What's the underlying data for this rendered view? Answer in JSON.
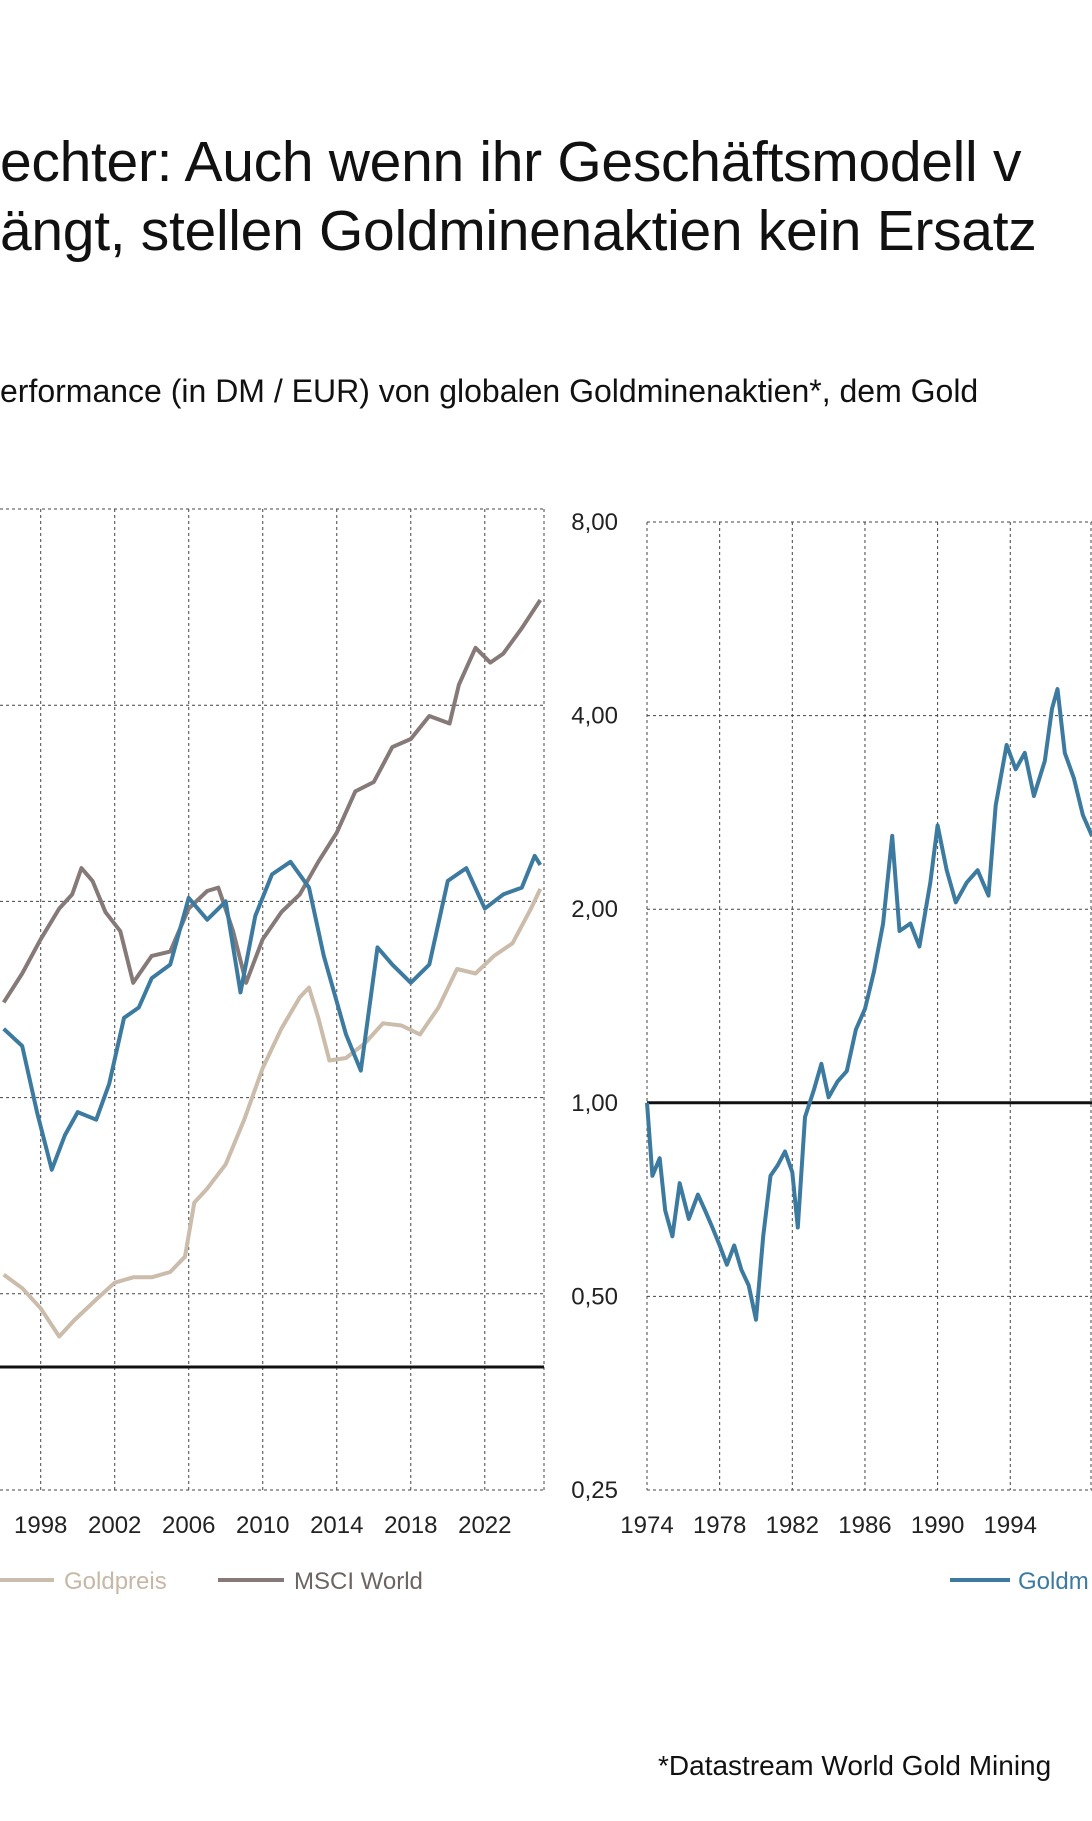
{
  "title_line1": "echter: Auch wenn ihr Geschäftsmodell v",
  "title_line2": "ängt, stellen Goldminenaktien kein Ersatz",
  "subtitle": "erformance (in DM / EUR) von globalen Goldminenaktien*, dem Gold",
  "footnote": "*Datastream World Gold Mining",
  "colors": {
    "gold_miners": "#3d7aa0",
    "gold_price": "#cbbcab",
    "msci_world": "#857a78"
  },
  "chart_data": [
    {
      "type": "line",
      "y_scale": "log",
      "x_tick_labels": [
        "1998",
        "2002",
        "2006",
        "2010",
        "2014",
        "2018",
        "2022"
      ],
      "x_range": [
        1995.8,
        2025.2
      ],
      "reference_line": "baseline",
      "grid": true,
      "legend": {
        "position": "bottom",
        "entries": [
          "Goldpreis",
          "MSCI World"
        ]
      },
      "series": [
        {
          "name": "Goldpreis",
          "color": "#cbbcab",
          "points": [
            [
              1996.0,
              1.07
            ],
            [
              1997.0,
              1.02
            ],
            [
              1998.0,
              0.95
            ],
            [
              1999.0,
              0.86
            ],
            [
              1999.8,
              0.91
            ],
            [
              2001.0,
              0.98
            ],
            [
              2002.0,
              1.04
            ],
            [
              2003.0,
              1.06
            ],
            [
              2004.0,
              1.06
            ],
            [
              2005.0,
              1.08
            ],
            [
              2005.8,
              1.14
            ],
            [
              2006.3,
              1.38
            ],
            [
              2007.0,
              1.45
            ],
            [
              2008.0,
              1.58
            ],
            [
              2009.0,
              1.85
            ],
            [
              2010.0,
              2.22
            ],
            [
              2011.0,
              2.55
            ],
            [
              2012.0,
              2.85
            ],
            [
              2012.5,
              2.95
            ],
            [
              2013.0,
              2.65
            ],
            [
              2013.6,
              2.28
            ],
            [
              2014.5,
              2.3
            ],
            [
              2015.5,
              2.42
            ],
            [
              2016.5,
              2.6
            ],
            [
              2017.5,
              2.58
            ],
            [
              2018.5,
              2.5
            ],
            [
              2019.5,
              2.75
            ],
            [
              2020.5,
              3.15
            ],
            [
              2021.5,
              3.1
            ],
            [
              2022.5,
              3.3
            ],
            [
              2023.5,
              3.45
            ],
            [
              2024.5,
              3.9
            ],
            [
              2025.0,
              4.18
            ]
          ]
        },
        {
          "name": "MSCI World",
          "color": "#857a78",
          "points": [
            [
              1996.0,
              2.8
            ],
            [
              1997.0,
              3.1
            ],
            [
              1998.0,
              3.5
            ],
            [
              1999.0,
              3.9
            ],
            [
              1999.7,
              4.1
            ],
            [
              2000.2,
              4.5
            ],
            [
              2000.8,
              4.3
            ],
            [
              2001.5,
              3.85
            ],
            [
              2002.3,
              3.6
            ],
            [
              2003.0,
              3.0
            ],
            [
              2004.0,
              3.3
            ],
            [
              2005.0,
              3.35
            ],
            [
              2006.0,
              3.9
            ],
            [
              2007.0,
              4.15
            ],
            [
              2007.6,
              4.2
            ],
            [
              2008.4,
              3.6
            ],
            [
              2009.1,
              3.0
            ],
            [
              2010.0,
              3.5
            ],
            [
              2011.0,
              3.85
            ],
            [
              2012.0,
              4.1
            ],
            [
              2013.0,
              4.6
            ],
            [
              2014.0,
              5.1
            ],
            [
              2015.0,
              5.9
            ],
            [
              2016.0,
              6.1
            ],
            [
              2017.0,
              6.9
            ],
            [
              2018.0,
              7.1
            ],
            [
              2019.0,
              7.7
            ],
            [
              2020.1,
              7.5
            ],
            [
              2020.6,
              8.6
            ],
            [
              2021.5,
              9.8
            ],
            [
              2022.3,
              9.3
            ],
            [
              2023.0,
              9.6
            ],
            [
              2024.0,
              10.5
            ],
            [
              2025.0,
              11.6
            ]
          ]
        },
        {
          "name": "Goldminenaktien",
          "color": "#3d7aa0",
          "points": [
            [
              1996.0,
              2.55
            ],
            [
              1997.0,
              2.4
            ],
            [
              1997.8,
              1.9
            ],
            [
              1998.6,
              1.55
            ],
            [
              1999.3,
              1.75
            ],
            [
              2000.0,
              1.9
            ],
            [
              2001.0,
              1.85
            ],
            [
              2001.7,
              2.1
            ],
            [
              2002.5,
              2.65
            ],
            [
              2003.3,
              2.75
            ],
            [
              2004.0,
              3.05
            ],
            [
              2005.0,
              3.2
            ],
            [
              2006.0,
              4.05
            ],
            [
              2007.0,
              3.75
            ],
            [
              2008.0,
              4.0
            ],
            [
              2008.8,
              2.9
            ],
            [
              2009.6,
              3.8
            ],
            [
              2010.5,
              4.4
            ],
            [
              2011.5,
              4.6
            ],
            [
              2012.5,
              4.2
            ],
            [
              2013.3,
              3.3
            ],
            [
              2014.5,
              2.5
            ],
            [
              2015.3,
              2.2
            ],
            [
              2016.2,
              3.4
            ],
            [
              2017.0,
              3.2
            ],
            [
              2018.0,
              3.0
            ],
            [
              2019.0,
              3.2
            ],
            [
              2020.0,
              4.3
            ],
            [
              2021.0,
              4.5
            ],
            [
              2022.0,
              3.9
            ],
            [
              2023.0,
              4.1
            ],
            [
              2024.0,
              4.2
            ],
            [
              2024.7,
              4.7
            ],
            [
              2025.0,
              4.55
            ]
          ]
        }
      ]
    },
    {
      "type": "line",
      "y_scale": "log",
      "y_tick_labels": [
        "0,25",
        "0,50",
        "1,00",
        "2,00",
        "4,00",
        "8,00"
      ],
      "ylim": [
        0.25,
        8.0
      ],
      "x_tick_labels": [
        "1974",
        "1978",
        "1982",
        "1986",
        "1990",
        "1994"
      ],
      "x_range": [
        1974,
        1998.5
      ],
      "reference_line": 1.0,
      "grid": true,
      "legend": {
        "position": "bottom",
        "entries": [
          "Goldm"
        ]
      },
      "series": [
        {
          "name": "Goldm",
          "color": "#3d7aa0",
          "points": [
            [
              1974.0,
              1.0
            ],
            [
              1974.3,
              0.77
            ],
            [
              1974.7,
              0.82
            ],
            [
              1975.0,
              0.68
            ],
            [
              1975.4,
              0.62
            ],
            [
              1975.8,
              0.75
            ],
            [
              1976.3,
              0.66
            ],
            [
              1976.8,
              0.72
            ],
            [
              1977.2,
              0.68
            ],
            [
              1977.6,
              0.64
            ],
            [
              1978.0,
              0.6
            ],
            [
              1978.4,
              0.56
            ],
            [
              1978.8,
              0.6
            ],
            [
              1979.2,
              0.55
            ],
            [
              1979.6,
              0.52
            ],
            [
              1980.0,
              0.46
            ],
            [
              1980.4,
              0.62
            ],
            [
              1980.8,
              0.77
            ],
            [
              1981.2,
              0.8
            ],
            [
              1981.6,
              0.84
            ],
            [
              1982.0,
              0.78
            ],
            [
              1982.3,
              0.64
            ],
            [
              1982.7,
              0.95
            ],
            [
              1983.2,
              1.05
            ],
            [
              1983.6,
              1.15
            ],
            [
              1984.0,
              1.02
            ],
            [
              1984.5,
              1.08
            ],
            [
              1985.0,
              1.12
            ],
            [
              1985.5,
              1.3
            ],
            [
              1986.0,
              1.4
            ],
            [
              1986.5,
              1.6
            ],
            [
              1987.0,
              1.9
            ],
            [
              1987.5,
              2.6
            ],
            [
              1987.9,
              1.85
            ],
            [
              1988.5,
              1.9
            ],
            [
              1989.0,
              1.75
            ],
            [
              1989.6,
              2.2
            ],
            [
              1990.0,
              2.7
            ],
            [
              1990.5,
              2.3
            ],
            [
              1991.0,
              2.05
            ],
            [
              1991.6,
              2.2
            ],
            [
              1992.2,
              2.3
            ],
            [
              1992.8,
              2.1
            ],
            [
              1993.2,
              2.9
            ],
            [
              1993.8,
              3.6
            ],
            [
              1994.3,
              3.3
            ],
            [
              1994.8,
              3.5
            ],
            [
              1995.3,
              3.0
            ],
            [
              1995.9,
              3.4
            ],
            [
              1996.3,
              4.1
            ],
            [
              1996.6,
              4.4
            ],
            [
              1997.0,
              3.5
            ],
            [
              1997.5,
              3.2
            ],
            [
              1998.0,
              2.8
            ],
            [
              1998.5,
              2.6
            ]
          ]
        }
      ]
    }
  ]
}
